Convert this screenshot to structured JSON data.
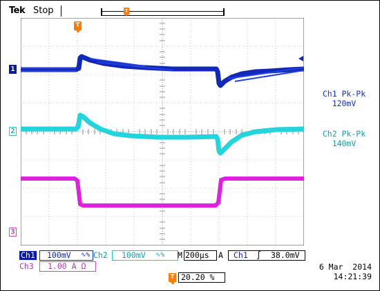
{
  "header": {
    "brand": "Tek",
    "state": "Stop",
    "trigger_marker": "T"
  },
  "screen": {
    "channel_labels": {
      "ch1": "1",
      "ch2": "2",
      "ch3": "3"
    }
  },
  "measurements": {
    "ch1": {
      "label": "Ch1 Pk-Pk",
      "value": "120mV"
    },
    "ch2": {
      "label": "Ch2 Pk-Pk",
      "value": "140mV"
    }
  },
  "status_bar": {
    "ch1_name": "Ch1",
    "ch1_scale": "100mV",
    "ch1_bw": "∿%",
    "ch2_name": "Ch2",
    "ch2_scale": "100mV",
    "ch2_bw": "∿%",
    "timebase_mode": "M",
    "timebase": "200µs",
    "acq_mode": "A",
    "trigger_source": "Ch1",
    "trigger_slope": "∫",
    "trigger_level": "38.0mV",
    "ch3_name": "Ch3",
    "ch3_scale": "1.00 A Ω",
    "trigger_position_marker": "T",
    "trigger_position": "20.20 %",
    "date": "6 Mar  2014",
    "time": "14:21:39"
  },
  "colors": {
    "ch1": "#1228b8",
    "ch2": "#22d4dc",
    "ch3": "#e020e0",
    "marker": "#ff7a00"
  }
}
